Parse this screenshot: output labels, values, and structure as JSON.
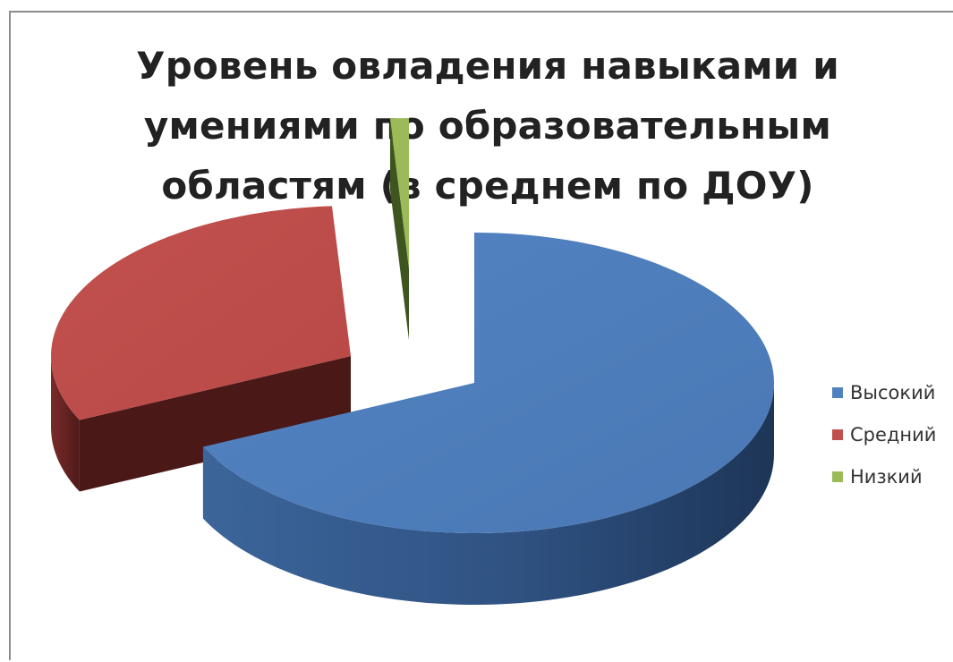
{
  "chart_data": {
    "type": "pie",
    "style": "3d-exploded",
    "title_lines": [
      "Уровень овладения навыками и",
      "умениями по образовательным",
      "областям (в среднем по ДОУ)"
    ],
    "categories": [
      "Высокий",
      "Средний",
      "Низкий"
    ],
    "values": [
      68,
      31,
      1
    ],
    "colors": [
      "#4f81bd",
      "#c0504d",
      "#9bbb59"
    ],
    "legend_position": "right"
  }
}
